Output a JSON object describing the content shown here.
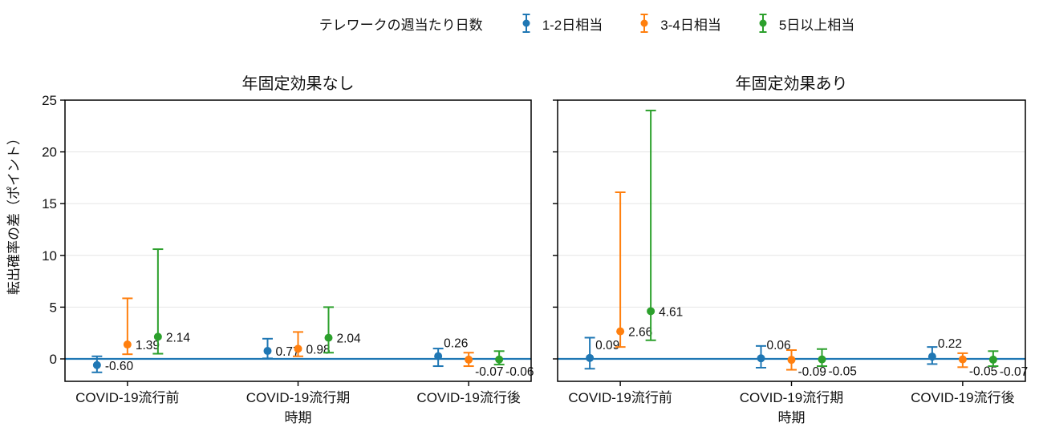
{
  "legend": {
    "title": "テレワークの週当たり日数",
    "items": [
      {
        "label": "1-2日相当",
        "color": "#1f77b4"
      },
      {
        "label": "3-4日相当",
        "color": "#ff7f0e"
      },
      {
        "label": "5日以上相当",
        "color": "#2ca02c"
      }
    ]
  },
  "chart_data": {
    "type": "errorbar",
    "ylabel": "転出確率の差（ポイント）",
    "xlabel": "時期",
    "categories": [
      "COVID-19流行前",
      "COVID-19流行期",
      "COVID-19流行後"
    ],
    "yticks": [
      0,
      5,
      10,
      15,
      20,
      25
    ],
    "ylim": [
      -2.2,
      25
    ],
    "grid": "horizontal",
    "grid_color": "#e6e6e6",
    "frame_color": "#000000",
    "zero_line": {
      "y": 0,
      "color": "#1f77b4"
    },
    "legend_title": "テレワークの週当たり日数",
    "panels": [
      {
        "title": "年固定効果なし",
        "series": [
          {
            "name": "1-2日相当",
            "color": "#1f77b4",
            "points": [
              {
                "v": -0.6,
                "lo": -1.3,
                "hi": 0.25,
                "label": "-0.60",
                "lp": "right"
              },
              {
                "v": 0.77,
                "lo": 0.05,
                "hi": 1.95,
                "label": "0.77",
                "lp": "right"
              },
              {
                "v": 0.26,
                "lo": -0.7,
                "hi": 1.0,
                "label": "0.26",
                "lp": "above"
              }
            ]
          },
          {
            "name": "3-4日相当",
            "color": "#ff7f0e",
            "points": [
              {
                "v": 1.39,
                "lo": 0.45,
                "hi": 5.85,
                "label": "1.39",
                "lp": "right"
              },
              {
                "v": 0.98,
                "lo": 0.25,
                "hi": 2.6,
                "label": "0.98",
                "lp": "right"
              },
              {
                "v": -0.07,
                "lo": -0.7,
                "hi": 0.6,
                "label": "-0.07",
                "lp": "below"
              }
            ]
          },
          {
            "name": "5日以上相当",
            "color": "#2ca02c",
            "points": [
              {
                "v": 2.14,
                "lo": 0.5,
                "hi": 10.6,
                "label": "2.14",
                "lp": "right"
              },
              {
                "v": 2.04,
                "lo": 0.6,
                "hi": 5.0,
                "label": "2.04",
                "lp": "right"
              },
              {
                "v": -0.06,
                "lo": -0.55,
                "hi": 0.75,
                "label": "-0.06",
                "lp": "below"
              }
            ]
          }
        ]
      },
      {
        "title": "年固定効果あり",
        "series": [
          {
            "name": "1-2日相当",
            "color": "#1f77b4",
            "points": [
              {
                "v": 0.09,
                "lo": -0.95,
                "hi": 2.05,
                "label": "0.09",
                "lp": "above"
              },
              {
                "v": 0.06,
                "lo": -0.85,
                "hi": 1.25,
                "label": "0.06",
                "lp": "above"
              },
              {
                "v": 0.22,
                "lo": -0.5,
                "hi": 1.15,
                "label": "0.22",
                "lp": "above"
              }
            ]
          },
          {
            "name": "3-4日相当",
            "color": "#ff7f0e",
            "points": [
              {
                "v": 2.66,
                "lo": 1.15,
                "hi": 16.1,
                "label": "2.66",
                "lp": "right"
              },
              {
                "v": -0.09,
                "lo": -1.05,
                "hi": 0.85,
                "label": "-0.09",
                "lp": "below"
              },
              {
                "v": -0.05,
                "lo": -0.8,
                "hi": 0.55,
                "label": "-0.05",
                "lp": "below"
              }
            ]
          },
          {
            "name": "5日以上相当",
            "color": "#2ca02c",
            "points": [
              {
                "v": 4.61,
                "lo": 1.8,
                "hi": 24.0,
                "label": "4.61",
                "lp": "right"
              },
              {
                "v": -0.05,
                "lo": -0.7,
                "hi": 0.95,
                "label": "-0.05",
                "lp": "below"
              },
              {
                "v": -0.07,
                "lo": -0.7,
                "hi": 0.75,
                "label": "-0.07",
                "lp": "below"
              }
            ]
          }
        ]
      }
    ]
  }
}
